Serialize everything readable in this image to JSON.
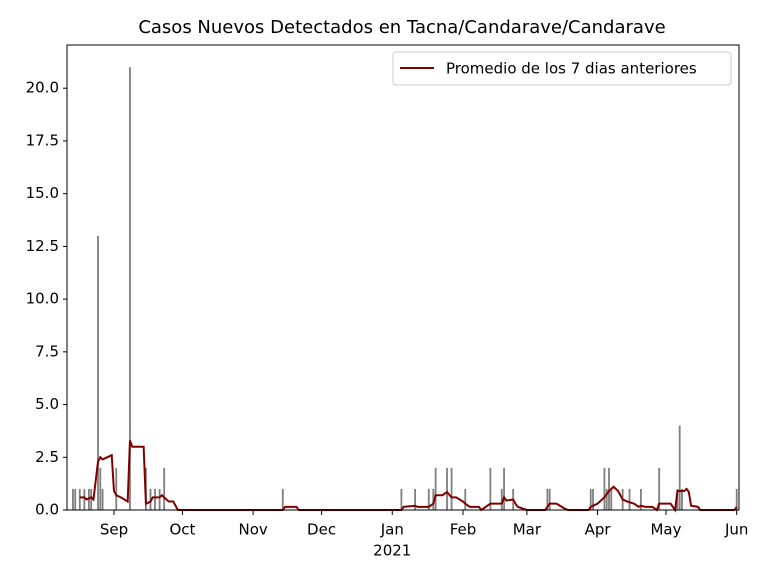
{
  "chart_data": {
    "type": "bar",
    "title": "Casos Nuevos Detectados en Tacna/Candarave/Candarave",
    "color": "#808080",
    "x": [
      -18,
      -17,
      -15,
      -13,
      -11,
      -10,
      -7,
      -6,
      -5,
      1,
      7,
      14,
      16,
      18,
      20,
      22,
      74,
      126,
      132,
      138,
      140,
      141,
      146,
      148,
      154,
      165,
      170,
      171,
      175,
      190,
      191,
      209,
      210,
      215,
      216,
      217,
      218,
      223,
      226,
      231,
      239,
      247,
      248,
      249,
      273
    ],
    "values": [
      1,
      1,
      1,
      1,
      1,
      1,
      13,
      2,
      1,
      2,
      21,
      2,
      1,
      1,
      1,
      2,
      1,
      1,
      1,
      1,
      1,
      2,
      2,
      2,
      1,
      2,
      1,
      2,
      1,
      1,
      1,
      1,
      1,
      2,
      1,
      2,
      1,
      1,
      1,
      1,
      2,
      1,
      4,
      1,
      1
    ],
    "line": {
      "name": "Promedio de los 7 dias anteriores",
      "color": "#800000",
      "x": [
        -15,
        -13,
        -12,
        -10,
        -9,
        -7,
        -6,
        -5,
        -3,
        -1,
        0,
        1,
        3,
        6,
        7,
        8,
        13,
        14,
        16,
        17,
        20,
        21,
        22,
        24,
        26,
        28,
        74,
        75,
        80,
        81,
        126,
        127,
        132,
        133,
        138,
        140,
        141,
        144,
        146,
        148,
        150,
        153,
        154,
        156,
        160,
        161,
        165,
        170,
        171,
        172,
        175,
        176,
        177,
        181,
        189,
        190,
        191,
        194,
        197,
        199,
        208,
        209,
        212,
        215,
        217,
        219,
        221,
        223,
        225,
        228,
        230,
        231,
        233,
        236,
        238,
        239,
        244,
        246,
        247,
        250,
        251,
        252,
        253,
        256,
        257,
        272,
        273
      ],
      "values": [
        0.6,
        0.6,
        0.5,
        0.6,
        0.5,
        2.3,
        2.5,
        2.4,
        2.5,
        2.6,
        0.9,
        0.7,
        0.6,
        0.4,
        3.3,
        3.0,
        3.0,
        0.3,
        0.4,
        0.6,
        0.6,
        0.7,
        0.6,
        0.4,
        0.4,
        0,
        0,
        0.15,
        0.15,
        0,
        0,
        0.15,
        0.2,
        0.15,
        0.15,
        0.3,
        0.7,
        0.7,
        0.85,
        0.6,
        0.6,
        0.4,
        0.3,
        0.15,
        0.15,
        0,
        0.3,
        0.3,
        0.6,
        0.45,
        0.5,
        0.3,
        0.15,
        0,
        0,
        0.15,
        0.3,
        0.3,
        0.1,
        0,
        0,
        0.15,
        0.3,
        0.6,
        0.9,
        1.1,
        0.9,
        0.5,
        0.4,
        0.3,
        0.15,
        0.2,
        0.15,
        0.15,
        0,
        0.3,
        0.3,
        0,
        0.9,
        0.9,
        1.0,
        0.85,
        0.2,
        0.15,
        0,
        0,
        0.15
      ]
    },
    "xlim": [
      -20.6,
      274
    ],
    "xticks": [
      {
        "value": 0,
        "label": "Sep"
      },
      {
        "value": 30,
        "label": "Oct"
      },
      {
        "value": 61,
        "label": "Nov"
      },
      {
        "value": 91,
        "label": "Dec"
      },
      {
        "value": 122,
        "label": "Jan"
      },
      {
        "value": 153,
        "label": "Feb"
      },
      {
        "value": 181,
        "label": "Mar"
      },
      {
        "value": 212,
        "label": "Apr"
      },
      {
        "value": 242,
        "label": "May"
      },
      {
        "value": 273,
        "label": "Jun"
      }
    ],
    "year_label": "2021",
    "ylim": [
      0,
      22.05
    ],
    "yticks": [
      {
        "value": 0,
        "label": "0.0"
      },
      2.5,
      {
        "value": 5,
        "label": "5.0"
      },
      7.5,
      {
        "value": 10,
        "label": "10.0"
      },
      12.5,
      {
        "value": 15,
        "label": "15.0"
      },
      17.5,
      {
        "value": 20,
        "label": "20.0"
      }
    ],
    "legend": "upper right"
  }
}
